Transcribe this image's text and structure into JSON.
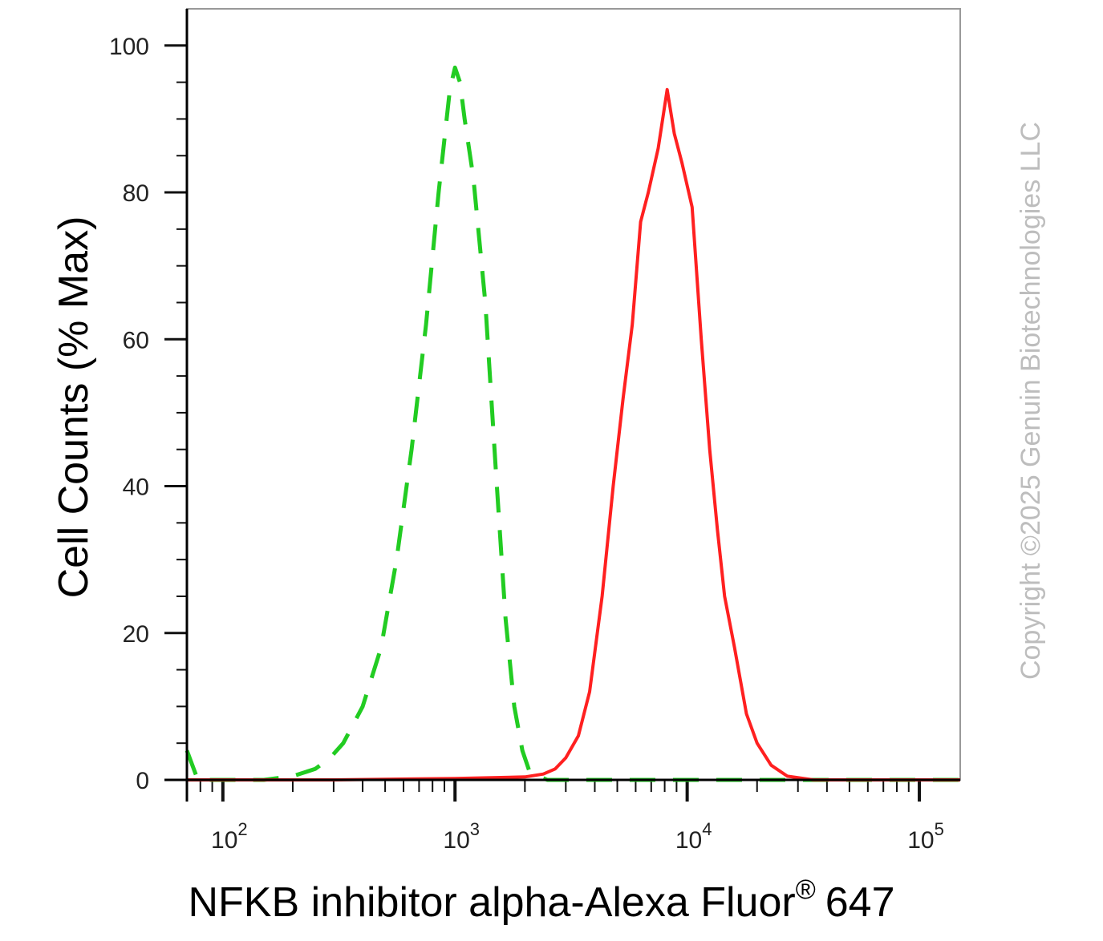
{
  "chart_data": {
    "type": "line",
    "title": "",
    "xlabel": "NFKB inhibitor alpha-Alexa Fluor",
    "xlabel_superscript": "®",
    "xlabel_suffix": "647",
    "ylabel": "Cell Counts (% Max)",
    "x_scale": "log",
    "xlim": [
      70,
      150000
    ],
    "ylim": [
      0,
      105
    ],
    "x_ticks": [
      {
        "value": 100,
        "base": "10",
        "exp": "2"
      },
      {
        "value": 1000,
        "base": "10",
        "exp": "3"
      },
      {
        "value": 10000,
        "base": "10",
        "exp": "4"
      },
      {
        "value": 100000,
        "base": "10",
        "exp": "5"
      }
    ],
    "y_ticks": [
      "0",
      "20",
      "40",
      "60",
      "80",
      "100"
    ],
    "grid": false,
    "series": [
      {
        "style": "dashed",
        "color": "#22cc22",
        "points": [
          [
            70,
            4
          ],
          [
            78,
            0
          ],
          [
            100,
            0
          ],
          [
            150,
            0
          ],
          [
            200,
            0.5
          ],
          [
            250,
            1.5
          ],
          [
            290,
            3
          ],
          [
            330,
            5
          ],
          [
            400,
            10
          ],
          [
            480,
            18
          ],
          [
            560,
            30
          ],
          [
            650,
            45
          ],
          [
            750,
            62
          ],
          [
            850,
            80
          ],
          [
            950,
            94
          ],
          [
            1000,
            97
          ],
          [
            1050,
            95
          ],
          [
            1100,
            90
          ],
          [
            1200,
            82
          ],
          [
            1350,
            65
          ],
          [
            1500,
            42
          ],
          [
            1650,
            22
          ],
          [
            1800,
            10
          ],
          [
            1950,
            4
          ],
          [
            2100,
            1
          ],
          [
            2500,
            0
          ],
          [
            5000,
            0
          ],
          [
            30000,
            0
          ],
          [
            150000,
            0
          ]
        ]
      },
      {
        "style": "solid",
        "color": "#ff2020",
        "points": [
          [
            70,
            0
          ],
          [
            300,
            0
          ],
          [
            1000,
            0.2
          ],
          [
            2000,
            0.4
          ],
          [
            2400,
            0.8
          ],
          [
            2700,
            1.5
          ],
          [
            3000,
            3
          ],
          [
            3400,
            6
          ],
          [
            3800,
            12
          ],
          [
            4300,
            25
          ],
          [
            4800,
            40
          ],
          [
            5300,
            52
          ],
          [
            5800,
            62
          ],
          [
            6300,
            76
          ],
          [
            6800,
            80
          ],
          [
            7500,
            86
          ],
          [
            8200,
            94
          ],
          [
            8800,
            88
          ],
          [
            9500,
            84
          ],
          [
            10500,
            78
          ],
          [
            11500,
            60
          ],
          [
            12500,
            45
          ],
          [
            13500,
            34
          ],
          [
            14500,
            25
          ],
          [
            16000,
            18
          ],
          [
            18000,
            9
          ],
          [
            20000,
            5
          ],
          [
            23000,
            2
          ],
          [
            27000,
            0.5
          ],
          [
            35000,
            0
          ],
          [
            150000,
            0
          ]
        ]
      }
    ]
  },
  "watermark": "Copyright ©2025 Genuin Biotechnologies LLC"
}
